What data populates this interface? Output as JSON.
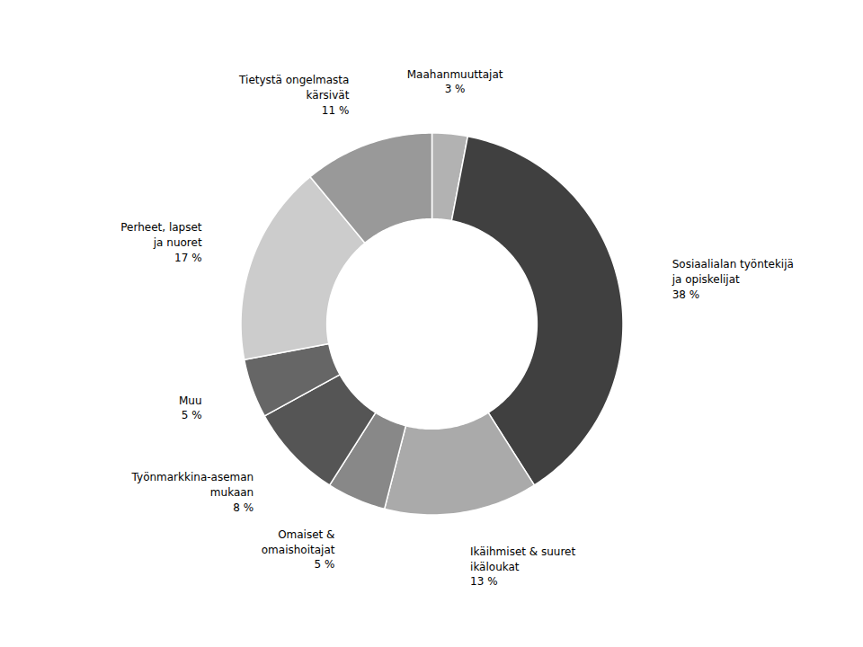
{
  "chart_data": {
    "type": "donut",
    "categories": [
      "Maahanmuuttajat\n3 %",
      "Sosiaalialan työntekijä\nja opiskelijat\n38 %",
      "Ikäihmiset & suuret\nikäloukat\n13 %",
      "Omaiset &\nomaishoitajat\n5 %",
      "Työnmarkkina-aseman\nmukaan\n8 %",
      "Muu\n5 %",
      "Perheet, lapset\nja nuoret\n17 %",
      "Tietystä ongelmasta\nkärsivät\n11 %"
    ],
    "values": [
      3,
      38,
      13,
      5,
      8,
      5,
      17,
      11
    ],
    "colors": [
      "#b2b2b2",
      "#404040",
      "#aaaaaa",
      "#888888",
      "#555555",
      "#666666",
      "#cccccc",
      "#999999"
    ]
  }
}
